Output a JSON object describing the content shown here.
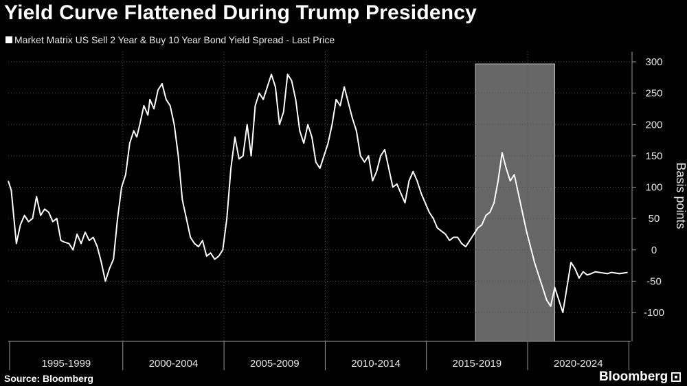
{
  "title": "Yield Curve Flattened During Trump Presidency",
  "legend": {
    "label": "Market Matrix US Sell 2 Year & Buy 10 Year Bond Yield Spread - Last Price"
  },
  "source": "Source: Bloomberg",
  "brand": "Bloomberg",
  "chart_data": {
    "type": "line",
    "title": "Yield Curve Flattened During Trump Presidency",
    "ylabel": "Basis points",
    "xlabel": "",
    "ylim": [
      -140,
      300
    ],
    "xlim": [
      1994.0,
      2024.75
    ],
    "yticks": [
      300,
      250,
      200,
      150,
      100,
      50,
      0,
      -50,
      -100
    ],
    "xcategories": [
      "1995-1999",
      "2000-2004",
      "2005-2009",
      "2010-2014",
      "2015-2019",
      "2020-2024"
    ],
    "highlight": {
      "from": 2017.08,
      "to": 2021.0,
      "label": ""
    },
    "grid": true,
    "legend_position": "top-left",
    "colors": {
      "line": "#ffffff",
      "background": "#000000",
      "highlight": "#666666",
      "grid": "#555555"
    },
    "series": [
      {
        "name": "Market Matrix US Sell 2 Year & Buy 10 Year Bond Yield Spread - Last Price",
        "x": [
          1994.0,
          1994.15,
          1994.4,
          1994.6,
          1994.8,
          1995.0,
          1995.2,
          1995.4,
          1995.6,
          1995.8,
          1996.0,
          1996.2,
          1996.4,
          1996.6,
          1996.8,
          1997.0,
          1997.2,
          1997.4,
          1997.6,
          1997.8,
          1998.0,
          1998.2,
          1998.4,
          1998.6,
          1998.8,
          1999.0,
          1999.2,
          1999.4,
          1999.6,
          1999.8,
          2000.0,
          2000.2,
          2000.35,
          2000.5,
          2000.7,
          2000.9,
          2001.0,
          2001.2,
          2001.4,
          2001.6,
          2001.8,
          2002.0,
          2002.2,
          2002.4,
          2002.6,
          2002.8,
          2003.0,
          2003.2,
          2003.4,
          2003.6,
          2003.8,
          2004.0,
          2004.2,
          2004.4,
          2004.6,
          2004.8,
          2005.0,
          2005.2,
          2005.4,
          2005.6,
          2005.8,
          2006.0,
          2006.2,
          2006.4,
          2006.6,
          2006.8,
          2007.0,
          2007.2,
          2007.4,
          2007.6,
          2007.8,
          2008.0,
          2008.2,
          2008.4,
          2008.6,
          2008.8,
          2009.0,
          2009.2,
          2009.4,
          2009.6,
          2009.8,
          2010.0,
          2010.2,
          2010.4,
          2010.6,
          2010.8,
          2011.0,
          2011.2,
          2011.4,
          2011.6,
          2011.8,
          2012.0,
          2012.2,
          2012.4,
          2012.6,
          2012.8,
          2013.0,
          2013.2,
          2013.4,
          2013.6,
          2013.8,
          2014.0,
          2014.2,
          2014.4,
          2014.6,
          2014.8,
          2015.0,
          2015.2,
          2015.4,
          2015.6,
          2015.8,
          2016.0,
          2016.2,
          2016.4,
          2016.6,
          2016.8,
          2017.0,
          2017.2,
          2017.4,
          2017.6,
          2017.8,
          2018.0,
          2018.2,
          2018.4,
          2018.6,
          2018.8,
          2019.0,
          2019.2,
          2019.4,
          2019.6,
          2019.8,
          2020.0,
          2020.2,
          2020.4,
          2020.6,
          2020.8,
          2021.0,
          2021.2,
          2021.4,
          2021.6,
          2021.8,
          2022.0,
          2022.2,
          2022.4,
          2022.6,
          2022.8,
          2023.0,
          2023.2,
          2023.4,
          2023.6,
          2023.8,
          2024.0,
          2024.2,
          2024.4,
          2024.6
        ],
        "values": [
          110,
          95,
          10,
          40,
          55,
          45,
          50,
          85,
          55,
          65,
          60,
          45,
          50,
          15,
          12,
          10,
          0,
          25,
          10,
          28,
          15,
          20,
          5,
          -20,
          -50,
          -30,
          -15,
          50,
          100,
          120,
          170,
          190,
          180,
          200,
          230,
          215,
          240,
          225,
          255,
          265,
          240,
          230,
          200,
          150,
          80,
          50,
          20,
          10,
          5,
          15,
          -10,
          -5,
          -15,
          -10,
          0,
          50,
          130,
          180,
          145,
          150,
          200,
          150,
          230,
          250,
          240,
          260,
          280,
          260,
          200,
          220,
          280,
          270,
          240,
          190,
          170,
          200,
          180,
          140,
          130,
          150,
          170,
          200,
          240,
          230,
          260,
          235,
          210,
          190,
          150,
          140,
          150,
          110,
          125,
          150,
          160,
          130,
          100,
          105,
          90,
          75,
          110,
          125,
          110,
          90,
          75,
          60,
          50,
          35,
          30,
          25,
          15,
          20,
          20,
          10,
          5,
          15,
          25,
          35,
          40,
          55,
          60,
          75,
          110,
          155,
          130,
          110,
          120,
          90,
          60,
          30,
          5,
          -20,
          -40,
          -60,
          -80,
          -90,
          -60,
          -80,
          -100,
          -60,
          -20,
          -30,
          -45,
          -35,
          -40,
          -38,
          -35,
          -36,
          -37,
          -38,
          -36,
          -37,
          -38,
          -37,
          -36
        ],
        "color": "#ffffff"
      }
    ]
  }
}
